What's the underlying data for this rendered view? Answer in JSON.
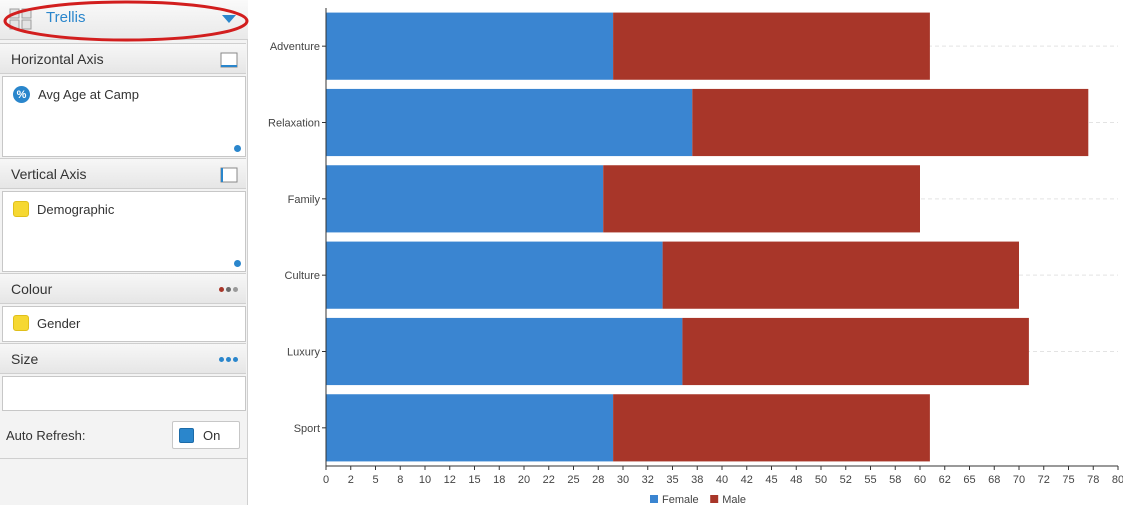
{
  "trellis": {
    "label": "Trellis"
  },
  "horizontal_axis": {
    "title": "Horizontal Axis",
    "field": "Avg Age at Camp"
  },
  "vertical_axis": {
    "title": "Vertical Axis",
    "field": "Demographic"
  },
  "colour": {
    "title": "Colour",
    "field": "Gender",
    "dot_colors": [
      "#a83629",
      "#6b6b6b",
      "#9a9a9a"
    ]
  },
  "size": {
    "title": "Size"
  },
  "auto_refresh": {
    "label": "Auto Refresh:",
    "toggle_text": "On"
  },
  "colors": {
    "accent": "#2a86cc",
    "female": "#3a85d1",
    "male": "#a83629",
    "highlight_ellipse": "#d21e1e"
  },
  "chart_data": {
    "type": "bar",
    "orientation": "horizontal",
    "stacked": true,
    "categories": [
      "Adventure",
      "Relaxation",
      "Family",
      "Culture",
      "Luxury",
      "Sport"
    ],
    "series": [
      {
        "name": "Female",
        "color": "#3a85d1",
        "values": [
          29,
          37,
          28,
          34,
          36,
          29
        ]
      },
      {
        "name": "Male",
        "color": "#a83629",
        "values": [
          32,
          40,
          32,
          36,
          35,
          32
        ]
      }
    ],
    "x_ticks": [
      "0",
      "2",
      "5",
      "8",
      "10",
      "12",
      "15",
      "18",
      "20",
      "22",
      "25",
      "28",
      "30",
      "32",
      "35",
      "38",
      "40",
      "42",
      "45",
      "48",
      "50",
      "52",
      "55",
      "58",
      "60",
      "62",
      "65",
      "68",
      "70",
      "72",
      "75",
      "78",
      "80"
    ],
    "xlim": [
      0,
      80
    ],
    "legend_position": "bottom-center",
    "grid": "horizontal dashed"
  }
}
